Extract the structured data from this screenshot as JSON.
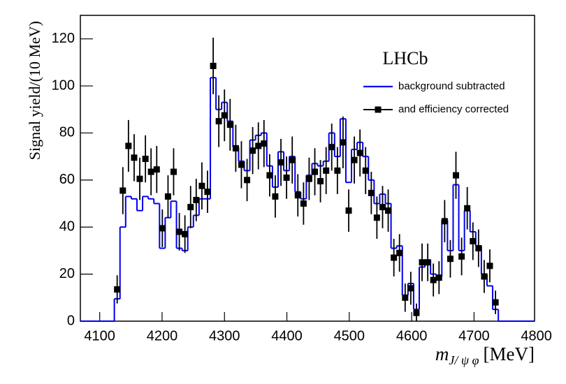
{
  "chart_data": {
    "type": "histogram-points",
    "annotation": "LHCb",
    "y_label": "Signal yield/(10 MeV)",
    "x_label": {
      "symbol": "m",
      "subscript": "J/ ψ φ",
      "unit": "[MeV]"
    },
    "xlim": [
      4069,
      4797
    ],
    "ylim": [
      0,
      130
    ],
    "xticks": [
      4100,
      4200,
      4300,
      4400,
      4500,
      4600,
      4700,
      4800
    ],
    "yticks": [
      0,
      20,
      40,
      60,
      80,
      100,
      120
    ],
    "legend_position": "top-right",
    "x": [
      4128.0,
      4137.1,
      4146.1,
      4155.2,
      4164.2,
      4173.3,
      4182.3,
      4191.4,
      4200.4,
      4209.5,
      4218.5,
      4227.6,
      4236.6,
      4245.7,
      4254.7,
      4263.8,
      4272.8,
      4281.9,
      4290.9,
      4300.0,
      4309.0,
      4318.1,
      4327.1,
      4336.2,
      4345.2,
      4354.3,
      4363.3,
      4372.4,
      4381.4,
      4390.5,
      4399.5,
      4408.6,
      4417.6,
      4426.7,
      4435.7,
      4444.8,
      4453.8,
      4462.9,
      4471.9,
      4481.0,
      4490.0,
      4499.1,
      4508.1,
      4517.2,
      4526.2,
      4535.3,
      4544.3,
      4553.4,
      4562.4,
      4571.5,
      4580.5,
      4589.6,
      4598.6,
      4607.7,
      4616.7,
      4625.8,
      4634.8,
      4643.9,
      4652.9,
      4662.0,
      4671.0,
      4680.1,
      4689.1,
      4698.2,
      4707.2,
      4716.3,
      4725.3,
      4734.4
    ],
    "series": [
      {
        "name": "background subtracted",
        "color": "#0000ee",
        "style": "histogram",
        "values": [
          9.5,
          40,
          53,
          52,
          47,
          53,
          52,
          50,
          31,
          44,
          51,
          31,
          30,
          40,
          45,
          52,
          52,
          103.5,
          90,
          93,
          85,
          74,
          68,
          64,
          77,
          79,
          80,
          66,
          57,
          72,
          64,
          70,
          55,
          52,
          62,
          67,
          66,
          68,
          80,
          70,
          86,
          59,
          73,
          76,
          70,
          60,
          50,
          54,
          50,
          31,
          32,
          11,
          16,
          5,
          23,
          26,
          20,
          19,
          43,
          30,
          58,
          30,
          47,
          38,
          32,
          20,
          15,
          5
        ]
      },
      {
        "name": "and efficiency corrected",
        "color": "#000000",
        "style": "points",
        "values": [
          13.5,
          55.5,
          74.5,
          69.5,
          60.5,
          69,
          63.5,
          64.5,
          39.5,
          53,
          63.5,
          38,
          37,
          48.5,
          51.5,
          57.5,
          55,
          108.5,
          85,
          87.5,
          83.5,
          73.5,
          66.5,
          60,
          72.5,
          74.5,
          75.5,
          62,
          53,
          67.5,
          61,
          68.5,
          53.5,
          50,
          60.5,
          63.5,
          59.5,
          64,
          74,
          64,
          76,
          47,
          68.5,
          71.5,
          64,
          54.5,
          44,
          48.5,
          47,
          27,
          29,
          10,
          14,
          3.5,
          25,
          25,
          17.5,
          18.5,
          42.5,
          26.5,
          62,
          27.5,
          48,
          34,
          31,
          19,
          23.5,
          8
        ],
        "errors": [
          6,
          10,
          11,
          10,
          9,
          10,
          10,
          10,
          8,
          9,
          10,
          8,
          8,
          9,
          9,
          10,
          9,
          12,
          11,
          11,
          11,
          10,
          10,
          9,
          10,
          10,
          10,
          9,
          9,
          10,
          9,
          10,
          9,
          9,
          9,
          10,
          9,
          10,
          10,
          10,
          11,
          9,
          10,
          10,
          10,
          9,
          9,
          9,
          9,
          8,
          8,
          6,
          7,
          4,
          8,
          8,
          7,
          7,
          9,
          8,
          10,
          8,
          9,
          8,
          8,
          7,
          7,
          5
        ]
      }
    ]
  }
}
